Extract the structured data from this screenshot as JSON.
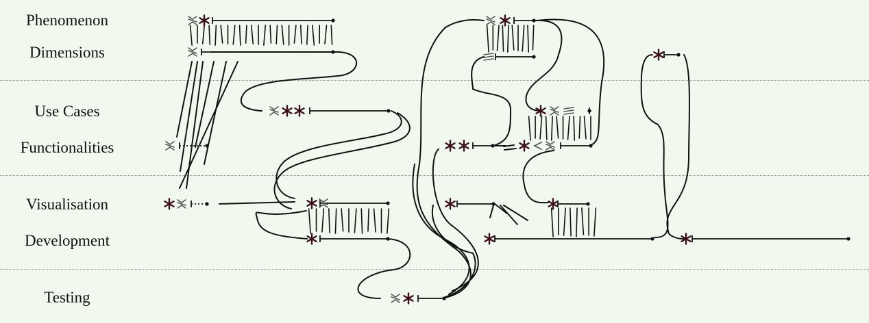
{
  "rows": [
    {
      "label": "Phenomenon"
    },
    {
      "label": "Dimensions"
    },
    {
      "label": "Use Cases"
    },
    {
      "label": "Functionalities"
    },
    {
      "label": "Visualisation"
    },
    {
      "label": "Development"
    },
    {
      "label": "Testing"
    }
  ],
  "colors": {
    "background": "#f1f8ee",
    "ink": "#111111",
    "glyph_dark": "#3a1018",
    "glyph_grey": "#555555",
    "divider": "#8a8a8a"
  }
}
